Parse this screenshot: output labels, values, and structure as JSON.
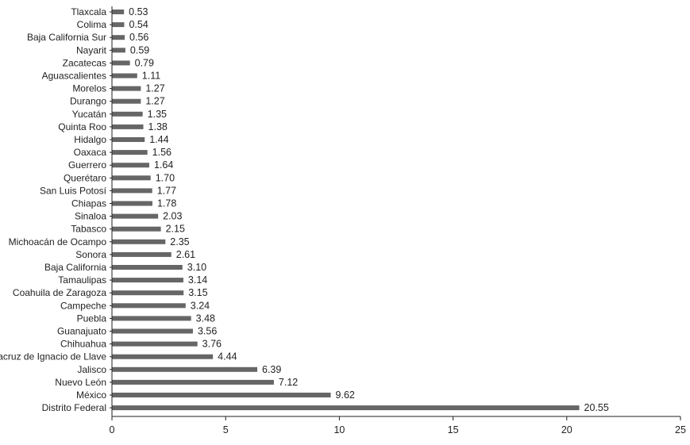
{
  "chart_data": {
    "type": "bar",
    "orientation": "horizontal",
    "title": "",
    "xlabel": "",
    "ylabel": "",
    "xlim": [
      0,
      25
    ],
    "x_ticks": [
      0,
      5,
      10,
      15,
      20,
      25
    ],
    "grid": false,
    "legend": "none",
    "bar_color": "#666666",
    "categories": [
      "Tlaxcala",
      "Colima",
      "Baja California Sur",
      "Nayarit",
      "Zacatecas",
      "Aguascalientes",
      "Morelos",
      "Durango",
      "Yucatán",
      "Quinta Roo",
      "Hidalgo",
      "Oaxaca",
      "Guerrero",
      "Querétaro",
      "San Luis Potosí",
      "Chiapas",
      "Sinaloa",
      "Tabasco",
      "Michoacán de Ocampo",
      "Sonora",
      "Baja California",
      "Tamaulipas",
      "Coahuila de Zaragoza",
      "Campeche",
      "Puebla",
      "Guanajuato",
      "Chihuahua",
      "Veracruz de Ignacio de Llave",
      "Jalisco",
      "Nuevo León",
      "México",
      "Distrito Federal"
    ],
    "values": [
      0.53,
      0.54,
      0.56,
      0.59,
      0.79,
      1.11,
      1.27,
      1.27,
      1.35,
      1.38,
      1.44,
      1.56,
      1.64,
      1.7,
      1.77,
      1.78,
      2.03,
      2.15,
      2.35,
      2.61,
      3.1,
      3.14,
      3.15,
      3.24,
      3.48,
      3.56,
      3.76,
      4.44,
      6.39,
      7.12,
      9.62,
      20.55
    ],
    "value_labels": [
      "0.53",
      "0.54",
      "0.56",
      "0.59",
      "0.79",
      "1.11",
      "1.27",
      "1.27",
      "1.35",
      "1.38",
      "1.44",
      "1.56",
      "1.64",
      "1.70",
      "1.77",
      "1.78",
      "2.03",
      "2.15",
      "2.35",
      "2.61",
      "3.10",
      "3.14",
      "3.15",
      "3.24",
      "3.48",
      "3.56",
      "3.76",
      "4.44",
      "6.39",
      "7.12",
      "9.62",
      "20.55"
    ]
  }
}
